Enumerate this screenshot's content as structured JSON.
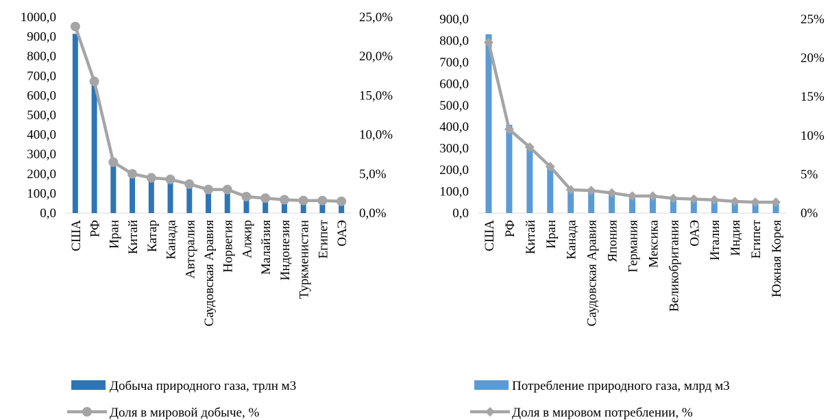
{
  "chart_data": [
    {
      "type": "bar",
      "categories": [
        "США",
        "РФ",
        "Иран",
        "Китай",
        "Катар",
        "Канада",
        "Автсралия",
        "Саудовская Аравия",
        "Норвегия",
        "Алжир",
        "Малайзия",
        "Индонезия",
        "Туркменистан",
        "Египет",
        "ОАЭ"
      ],
      "series": [
        {
          "name": "Добыча природного газа, трлн м3",
          "kind": "bar",
          "axis": "left",
          "color": "#2e75b6",
          "values": [
            915,
            670,
            245,
            185,
            175,
            170,
            145,
            115,
            115,
            85,
            75,
            65,
            65,
            60,
            55
          ]
        },
        {
          "name": "Доля в мировой добыче, %",
          "kind": "line",
          "axis": "right",
          "color": "#a5a5a5",
          "marker": "circle",
          "values": [
            23.8,
            16.8,
            6.5,
            5.0,
            4.5,
            4.3,
            3.7,
            3.0,
            3.0,
            2.1,
            1.9,
            1.7,
            1.6,
            1.6,
            1.5
          ]
        }
      ],
      "y_left": {
        "min": 0,
        "max": 1000,
        "ticks": [
          "0,0",
          "100,0",
          "200,0",
          "300,0",
          "400,0",
          "500,0",
          "600,0",
          "700,0",
          "800,0",
          "900,0",
          "1000,0"
        ]
      },
      "y_right": {
        "min": 0,
        "max": 25,
        "ticks": [
          "0,0%",
          "5,0%",
          "10,0%",
          "15,0%",
          "20,0%",
          "25,0%"
        ]
      },
      "grid": false,
      "legend": "bottom"
    },
    {
      "type": "bar",
      "categories": [
        "США",
        "РФ",
        "Китай",
        "Иран",
        "Канада",
        "Саудовская Аравия",
        "Япония",
        "Германия",
        "Мексика",
        "Великобритания",
        "ОАЭ",
        "Италия",
        "Индия",
        "Египет",
        "Южная Корея"
      ],
      "series": [
        {
          "name": "Потребление природного газа, млрд м3",
          "kind": "bar",
          "axis": "left",
          "color": "#5b9bd5",
          "values": [
            830,
            410,
            310,
            215,
            115,
            110,
            100,
            85,
            85,
            75,
            75,
            70,
            60,
            60,
            55
          ]
        },
        {
          "name": "Доля в мировом потреблении, %",
          "kind": "line",
          "axis": "right",
          "color": "#a5a5a5",
          "marker": "diamond",
          "values": [
            22.0,
            10.8,
            8.5,
            6.0,
            3.0,
            2.9,
            2.6,
            2.2,
            2.2,
            1.9,
            1.8,
            1.7,
            1.5,
            1.4,
            1.4
          ]
        }
      ],
      "y_left": {
        "min": 0,
        "max": 900,
        "ticks": [
          "0,0",
          "100,0",
          "200,0",
          "300,0",
          "400,0",
          "500,0",
          "600,0",
          "700,0",
          "800,0",
          "900,0"
        ]
      },
      "y_right": {
        "min": 0,
        "max": 25,
        "ticks": [
          "0%",
          "5%",
          "10%",
          "15%",
          "20%",
          "25%"
        ]
      },
      "grid": false,
      "legend": "bottom"
    }
  ]
}
